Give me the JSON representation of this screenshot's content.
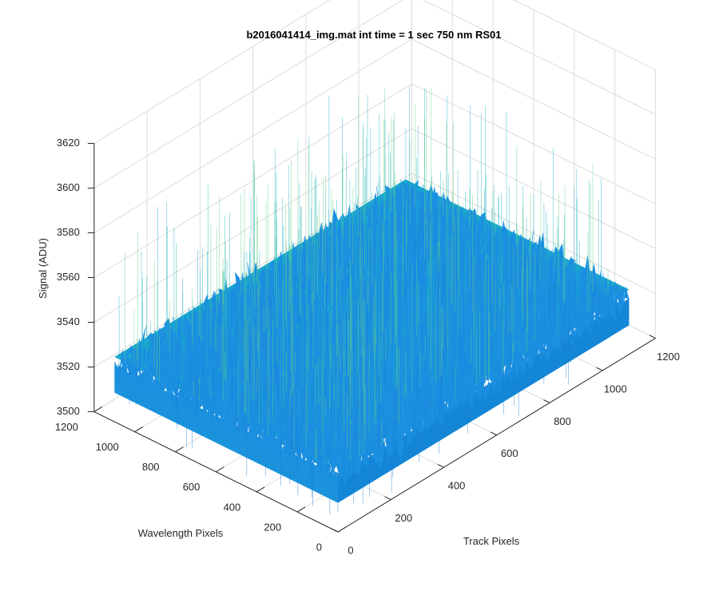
{
  "chart_data": {
    "type": "surface",
    "title": "b2016041414_img.mat int time = 1 sec  750 nm RS01",
    "xlabel": "Track Pixels",
    "ylabel": "Wavelength Pixels",
    "zlabel": "Signal (ADU)",
    "xlim": [
      0,
      1200
    ],
    "ylim": [
      0,
      1200
    ],
    "zlim": [
      3500,
      3620
    ],
    "x_ticks": [
      "0",
      "200",
      "400",
      "600",
      "800",
      "1000",
      "1200"
    ],
    "y_ticks": [
      "0",
      "200",
      "400",
      "600",
      "800",
      "1000",
      "1200"
    ],
    "z_ticks": [
      "3500",
      "3520",
      "3540",
      "3560",
      "3580",
      "3600",
      "3620"
    ],
    "grid": true,
    "surface": {
      "x_extent": [
        0,
        1100
      ],
      "y_extent": [
        0,
        1100
      ],
      "mean_signal": 3525,
      "noise_min": 3500,
      "noise_max": 3590,
      "colormap": [
        "#0e5fcf",
        "#1b8fe0",
        "#19b1c8",
        "#3fc19a",
        "#7fd67a"
      ]
    }
  }
}
